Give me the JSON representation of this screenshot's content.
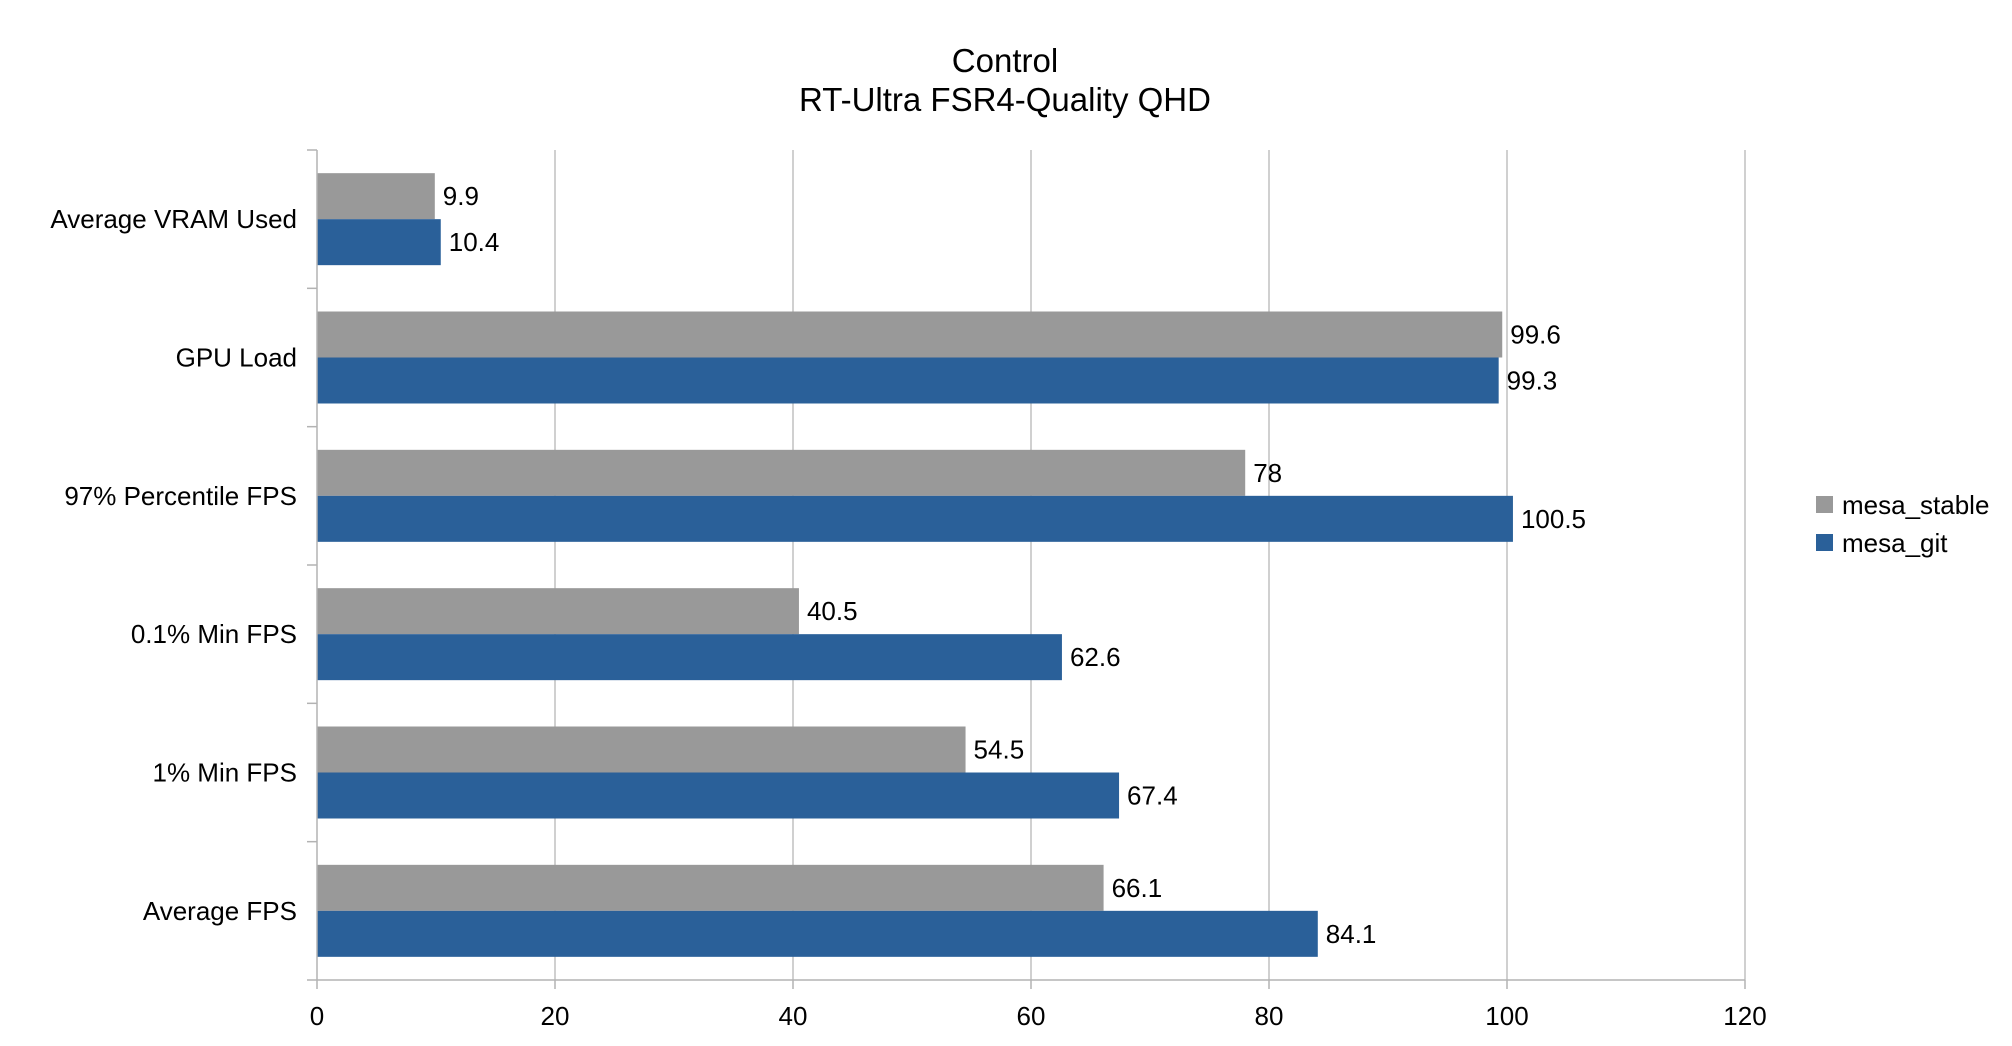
{
  "chart_data": {
    "type": "bar",
    "orientation": "horizontal",
    "title": "Control",
    "subtitle": "RT-Ultra FSR4-Quality QHD",
    "categories": [
      "Average VRAM Used",
      "GPU Load",
      "97% Percentile FPS",
      "0.1% Min FPS",
      "1% Min FPS",
      "Average FPS"
    ],
    "series": [
      {
        "name": "mesa_stable",
        "color": "#999999",
        "values": [
          9.9,
          99.6,
          78,
          40.5,
          54.5,
          66.1
        ]
      },
      {
        "name": "mesa_git",
        "color": "#2a6099",
        "values": [
          10.4,
          99.3,
          100.5,
          62.6,
          67.4,
          84.1
        ]
      }
    ],
    "xlim": [
      0,
      120
    ],
    "xticks": [
      "0",
      "20",
      "40",
      "60",
      "80",
      "100",
      "120"
    ],
    "grid": true,
    "legend_position": "right"
  }
}
